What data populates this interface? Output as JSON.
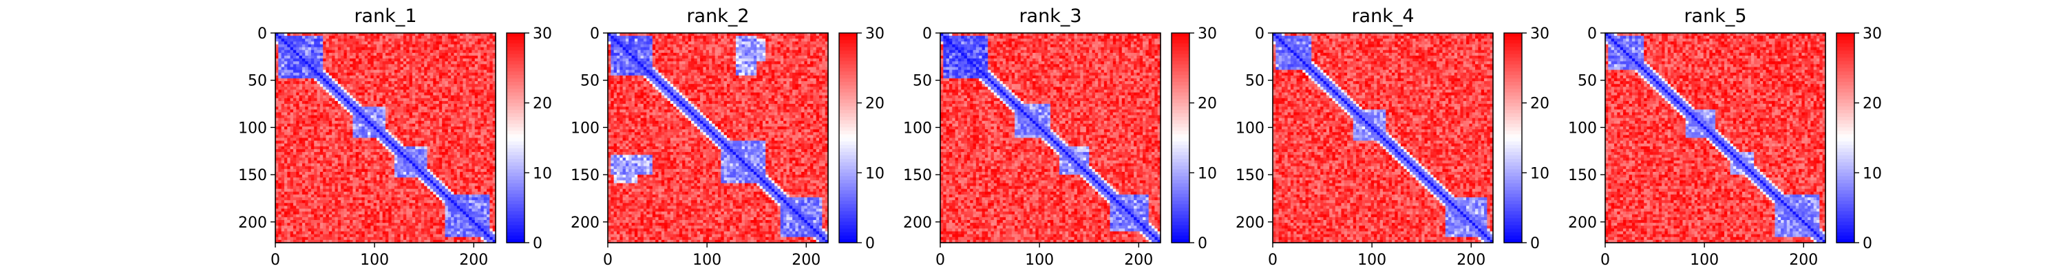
{
  "chart_data": [
    {
      "type": "heatmap",
      "title": "rank_1",
      "x_range": [
        0,
        222
      ],
      "y_range": [
        0,
        222
      ],
      "y_inverted": true,
      "x_ticks": [
        0,
        100,
        200
      ],
      "y_ticks": [
        0,
        50,
        100,
        150,
        200
      ],
      "colorbar": {
        "min": 0,
        "max": 30,
        "ticks": [
          0,
          10,
          20,
          30
        ],
        "colormap": "bwr",
        "low_color": "#0000ff",
        "mid_color": "#ffffff",
        "high_color": "#ff0000"
      },
      "diagonal_value": 0,
      "background_value": 26,
      "blue_regions": [
        {
          "x": [
            2,
            48
          ],
          "y": [
            2,
            48
          ],
          "value": 8
        },
        {
          "x": [
            78,
            112
          ],
          "y": [
            78,
            112
          ],
          "value": 10
        },
        {
          "x": [
            120,
            152
          ],
          "y": [
            120,
            152
          ],
          "value": 10
        },
        {
          "x": [
            170,
            215
          ],
          "y": [
            170,
            215
          ],
          "value": 9
        }
      ]
    },
    {
      "type": "heatmap",
      "title": "rank_2",
      "x_range": [
        0,
        222
      ],
      "y_range": [
        0,
        222
      ],
      "y_inverted": true,
      "x_ticks": [
        0,
        100,
        200
      ],
      "y_ticks": [
        0,
        50,
        100,
        150,
        200
      ],
      "colorbar": {
        "min": 0,
        "max": 30,
        "ticks": [
          0,
          10,
          20,
          30
        ],
        "colormap": "bwr",
        "low_color": "#0000ff",
        "mid_color": "#ffffff",
        "high_color": "#ff0000"
      },
      "diagonal_value": 0,
      "background_value": 26,
      "blue_regions": [
        {
          "x": [
            2,
            45
          ],
          "y": [
            2,
            45
          ],
          "value": 8
        },
        {
          "x": [
            135,
            160
          ],
          "y": [
            5,
            30
          ],
          "value": 12
        },
        {
          "x": [
            2,
            45
          ],
          "y": [
            130,
            150
          ],
          "value": 10
        },
        {
          "x": [
            115,
            160
          ],
          "y": [
            115,
            160
          ],
          "value": 10
        },
        {
          "x": [
            175,
            215
          ],
          "y": [
            175,
            215
          ],
          "value": 9
        }
      ]
    },
    {
      "type": "heatmap",
      "title": "rank_3",
      "x_range": [
        0,
        222
      ],
      "y_range": [
        0,
        222
      ],
      "y_inverted": true,
      "x_ticks": [
        0,
        100,
        200
      ],
      "y_ticks": [
        0,
        50,
        100,
        150,
        200
      ],
      "colorbar": {
        "min": 0,
        "max": 30,
        "ticks": [
          0,
          10,
          20,
          30
        ],
        "colormap": "bwr",
        "low_color": "#0000ff",
        "mid_color": "#ffffff",
        "high_color": "#ff0000"
      },
      "diagonal_value": 0,
      "background_value": 26,
      "blue_regions": [
        {
          "x": [
            2,
            48
          ],
          "y": [
            2,
            48
          ],
          "value": 7
        },
        {
          "x": [
            75,
            110
          ],
          "y": [
            75,
            110
          ],
          "value": 10
        },
        {
          "x": [
            120,
            150
          ],
          "y": [
            120,
            150
          ],
          "value": 10
        },
        {
          "x": [
            170,
            210
          ],
          "y": [
            170,
            210
          ],
          "value": 9
        }
      ]
    },
    {
      "type": "heatmap",
      "title": "rank_4",
      "x_range": [
        0,
        222
      ],
      "y_range": [
        0,
        222
      ],
      "y_inverted": true,
      "x_ticks": [
        0,
        100,
        200
      ],
      "y_ticks": [
        0,
        50,
        100,
        150,
        200
      ],
      "colorbar": {
        "min": 0,
        "max": 30,
        "ticks": [
          0,
          10,
          20,
          30
        ],
        "colormap": "bwr",
        "low_color": "#0000ff",
        "mid_color": "#ffffff",
        "high_color": "#ff0000"
      },
      "diagonal_value": 0,
      "background_value": 26,
      "blue_regions": [
        {
          "x": [
            2,
            40
          ],
          "y": [
            2,
            40
          ],
          "value": 9
        },
        {
          "x": [
            80,
            115
          ],
          "y": [
            80,
            115
          ],
          "value": 11
        },
        {
          "x": [
            175,
            215
          ],
          "y": [
            175,
            215
          ],
          "value": 10
        }
      ]
    },
    {
      "type": "heatmap",
      "title": "rank_5",
      "x_range": [
        0,
        222
      ],
      "y_range": [
        0,
        222
      ],
      "y_inverted": true,
      "x_ticks": [
        0,
        100,
        200
      ],
      "y_ticks": [
        0,
        50,
        100,
        150,
        200
      ],
      "colorbar": {
        "min": 0,
        "max": 30,
        "ticks": [
          0,
          10,
          20,
          30
        ],
        "colormap": "bwr",
        "low_color": "#0000ff",
        "mid_color": "#ffffff",
        "high_color": "#ff0000"
      },
      "diagonal_value": 0,
      "background_value": 26,
      "blue_regions": [
        {
          "x": [
            2,
            40
          ],
          "y": [
            2,
            40
          ],
          "value": 9
        },
        {
          "x": [
            80,
            110
          ],
          "y": [
            80,
            110
          ],
          "value": 11
        },
        {
          "x": [
            125,
            150
          ],
          "y": [
            125,
            150
          ],
          "value": 11
        },
        {
          "x": [
            170,
            215
          ],
          "y": [
            170,
            215
          ],
          "value": 10
        }
      ]
    }
  ]
}
